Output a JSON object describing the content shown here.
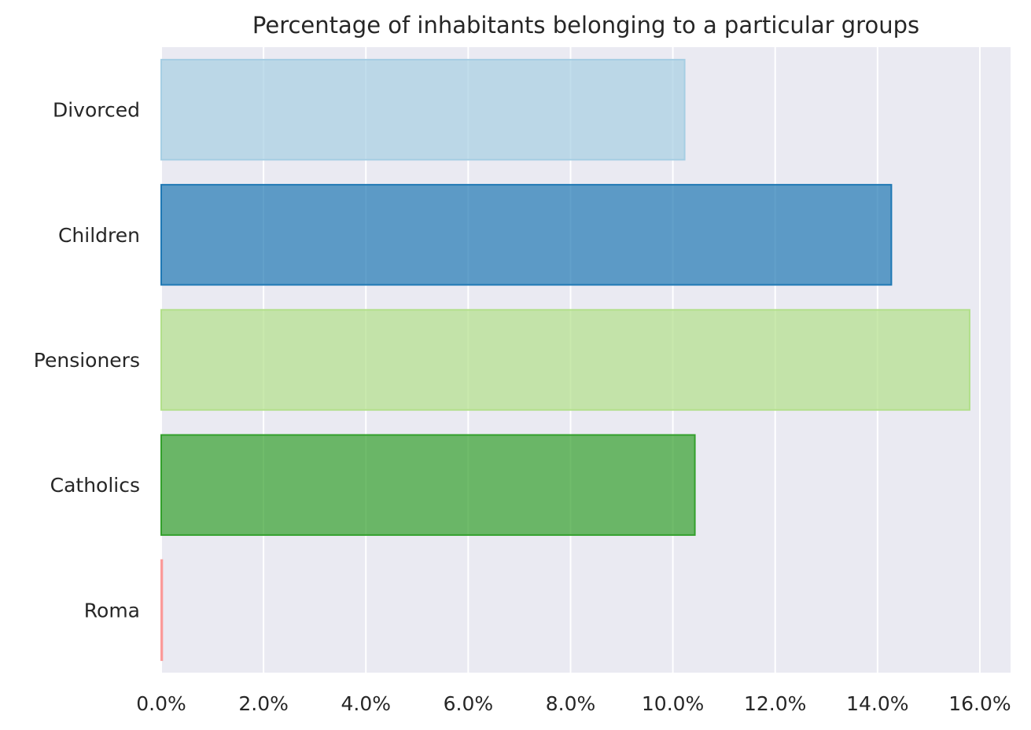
{
  "chart_data": {
    "type": "bar",
    "orientation": "horizontal",
    "title": "Percentage of inhabitants belonging to a particular groups",
    "xlabel": "",
    "ylabel": "",
    "categories": [
      "Divorced",
      "Children",
      "Pensioners",
      "Catholics",
      "Roma"
    ],
    "values": [
      10.23,
      14.27,
      15.8,
      10.43,
      0.02
    ],
    "value_unit": "%",
    "xlim": [
      0,
      16.6
    ],
    "xticks": [
      "0.0%",
      "2.0%",
      "4.0%",
      "6.0%",
      "8.0%",
      "10.0%",
      "12.0%",
      "14.0%",
      "16.0%"
    ],
    "xtick_values": [
      0,
      2,
      4,
      6,
      8,
      10,
      12,
      14,
      16
    ],
    "grid": true,
    "legend": "none",
    "colors": {
      "background": "#eaeaf2",
      "grid": "#ffffff",
      "bar_fills": [
        "#a6cee3",
        "#1f78b4",
        "#b2df8a",
        "#33a02c",
        "#fb9a99"
      ],
      "bar_edges": [
        "#a6cee3",
        "#1f78b4",
        "#b2df8a",
        "#33a02c",
        "#fb9a99"
      ]
    }
  }
}
